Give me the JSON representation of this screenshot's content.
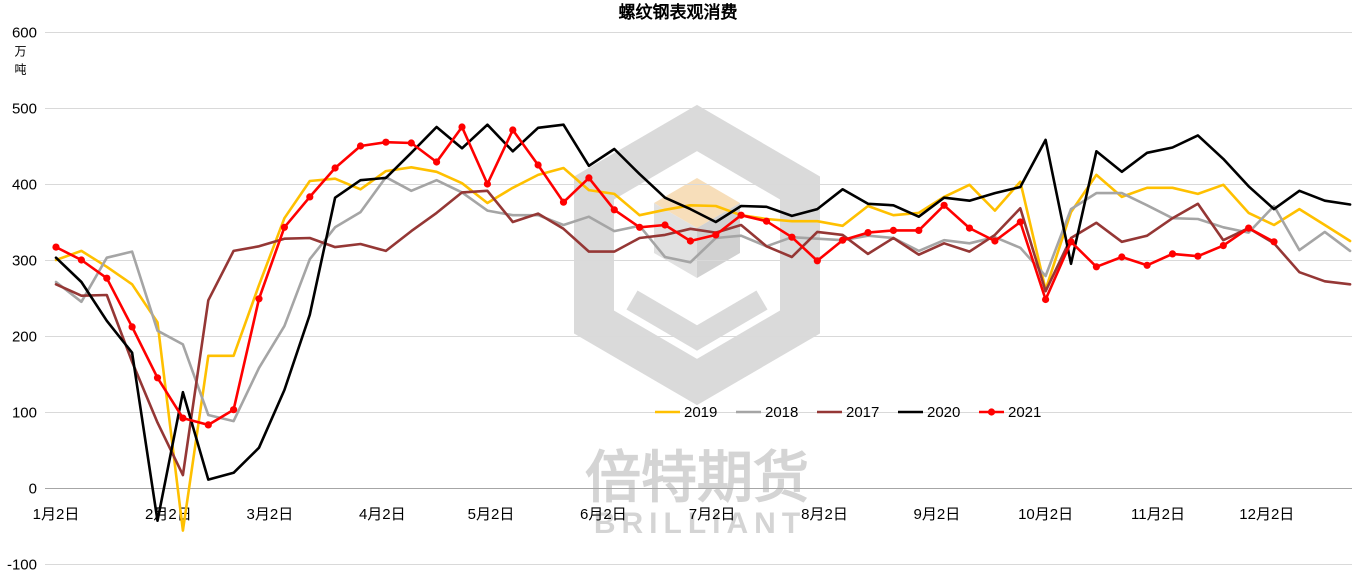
{
  "chart_data": {
    "type": "line",
    "title": "螺纹钢表观消费",
    "xlabel": "",
    "ylabel": "万吨",
    "ylim": [
      -100,
      600
    ],
    "yticks": [
      600,
      500,
      400,
      300,
      200,
      100,
      0,
      -100
    ],
    "xtick_labels": [
      "1月2日",
      "2月2日",
      "3月2日",
      "4月2日",
      "5月2日",
      "6月2日",
      "7月2日",
      "8月2日",
      "9月2日",
      "10月2日",
      "11月2日",
      "12月2日"
    ],
    "grid": "horizontal",
    "legend_position": "lower-center",
    "x": [
      "1月2日",
      "1月9日",
      "1月16日",
      "1月23日",
      "1月30日",
      "2月6日",
      "2月13日",
      "2月20日",
      "2月27日",
      "3月6日",
      "3月13日",
      "3月20日",
      "3月27日",
      "4月3日",
      "4月10日",
      "4月17日",
      "4月24日",
      "5月1日",
      "5月8日",
      "5月15日",
      "5月22日",
      "5月29日",
      "6月5日",
      "6月12日",
      "6月19日",
      "6月26日",
      "7月3日",
      "7月10日",
      "7月17日",
      "7月24日",
      "7月31日",
      "8月7日",
      "8月14日",
      "8月21日",
      "8月28日",
      "9月4日",
      "9月11日",
      "9月18日",
      "9月25日",
      "10月2日",
      "10月9日",
      "10月16日",
      "10月23日",
      "10月30日",
      "11月6日",
      "11月13日",
      "11月20日",
      "11月27日",
      "12月4日",
      "12月11日",
      "12月18日",
      "12月25日"
    ],
    "series": [
      {
        "name": "2019",
        "color": "#FFC000",
        "marker": "none",
        "values": [
          300,
          312,
          291,
          268,
          218,
          -56,
          174,
          174,
          267,
          355,
          404,
          407,
          393,
          417,
          422,
          416,
          401,
          375,
          395,
          412,
          421,
          392,
          387,
          359,
          366,
          372,
          371,
          359,
          354,
          351,
          351,
          345,
          371,
          359,
          362,
          383,
          399,
          365,
          403,
          261,
          363,
          412,
          383,
          395,
          395,
          387,
          399,
          362,
          346,
          367,
          346,
          325
        ]
      },
      {
        "name": "2018",
        "color": "#A5A5A5",
        "marker": "none",
        "values": [
          271,
          245,
          303,
          311,
          207,
          189,
          96,
          88,
          158,
          213,
          301,
          343,
          363,
          409,
          391,
          405,
          389,
          365,
          359,
          359,
          346,
          357,
          338,
          345,
          304,
          297,
          329,
          332,
          318,
          330,
          328,
          326,
          332,
          329,
          312,
          326,
          322,
          330,
          316,
          279,
          367,
          388,
          388,
          372,
          355,
          354,
          343,
          336,
          371,
          313,
          337,
          312
        ]
      },
      {
        "name": "2017",
        "color": "#953735",
        "marker": "none",
        "values": [
          268,
          253,
          254,
          166,
          86,
          17,
          247,
          312,
          318,
          328,
          329,
          317,
          321,
          312,
          338,
          362,
          389,
          391,
          350,
          361,
          341,
          311,
          311,
          329,
          333,
          341,
          336,
          346,
          318,
          304,
          337,
          333,
          308,
          329,
          307,
          322,
          311,
          333,
          368,
          259,
          329,
          349,
          324,
          332,
          355,
          374,
          326,
          342,
          322,
          284,
          272,
          268
        ]
      },
      {
        "name": "2020",
        "color": "#000000",
        "marker": "none",
        "values": [
          303,
          271,
          220,
          178,
          -43,
          126,
          11,
          20,
          53,
          129,
          228,
          382,
          405,
          408,
          441,
          475,
          447,
          478,
          443,
          474,
          478,
          424,
          446,
          413,
          382,
          367,
          350,
          371,
          370,
          358,
          367,
          393,
          374,
          372,
          357,
          382,
          378,
          388,
          396,
          458,
          295,
          443,
          416,
          441,
          448,
          464,
          433,
          397,
          367,
          391,
          378,
          373
        ]
      },
      {
        "name": "2021",
        "color": "#FF0000",
        "marker": "circle",
        "values": [
          317,
          300,
          276,
          212,
          145,
          92,
          83,
          103,
          249,
          343,
          383,
          421,
          450,
          455,
          454,
          429,
          475,
          400,
          471,
          425,
          376,
          408,
          366,
          343,
          346,
          325,
          333,
          359,
          351,
          330,
          299,
          326,
          336,
          339,
          339,
          372,
          342,
          325,
          350,
          248,
          324,
          291,
          304,
          293,
          308,
          305,
          319,
          342,
          324,
          null,
          null,
          null
        ]
      }
    ]
  },
  "watermark": {
    "brand_cn": "倍特期货",
    "brand_en": "BRILLIANT"
  }
}
